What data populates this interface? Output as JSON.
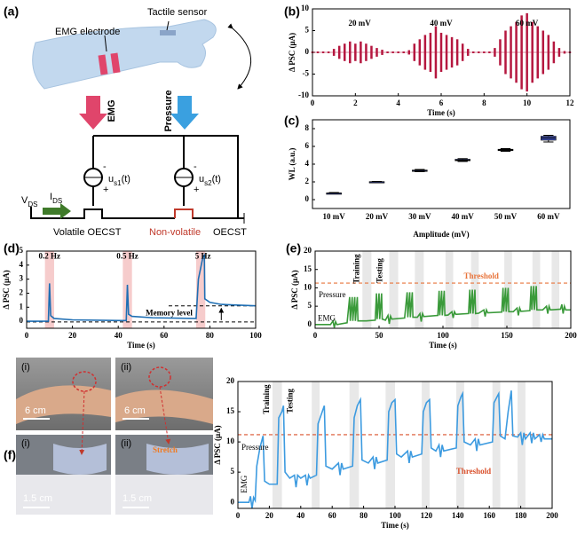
{
  "figure": {
    "panel_labels": [
      "(a)",
      "(b)",
      "(c)",
      "(d)",
      "(e)",
      "(f)"
    ],
    "diagram": {
      "electrode": "EMG electrode",
      "sensor": "Tactile sensor",
      "emg": "EMG",
      "pressure": "Pressure",
      "source1": {
        "main": "u",
        "sub": "s1",
        "tail": "(t)"
      },
      "source2": {
        "main": "u",
        "sub": "s2",
        "tail": "(t)"
      },
      "minus": "-",
      "plus": "+",
      "vds": {
        "main": "V",
        "sub": "DS"
      },
      "ids": {
        "main": "I",
        "sub": "DS"
      },
      "volatile": "Volatile OECST",
      "nonvolatile": "Non-volatile",
      "oecst": "OECST"
    },
    "photos": {
      "labels": [
        "(i)",
        "(ii)",
        "(i)",
        "(ii)"
      ],
      "scale_top": "6 cm",
      "scale_bottom": "1.5 cm",
      "stretch": "Stretch"
    }
  },
  "chart_data": [
    {
      "type": "signal",
      "xlabel": "Time (s)",
      "ylabel": "Δ PSC (μA)",
      "color": "#b5173f",
      "xlim": [
        0,
        12
      ],
      "xticks": [
        0,
        2,
        4,
        6,
        8,
        10,
        12
      ],
      "ylim": [
        -10,
        10
      ],
      "yticks": [
        -10,
        -5,
        0,
        5,
        10
      ],
      "annotations": [
        "20 mV",
        "40 mV",
        "60 mV"
      ],
      "x": [
        0,
        0.25,
        0.5,
        0.75,
        1,
        1.25,
        1.5,
        1.75,
        2,
        2.25,
        2.5,
        2.75,
        3,
        3.25,
        3.5,
        3.75,
        4,
        4.25,
        4.5,
        4.75,
        5,
        5.25,
        5.5,
        5.75,
        6,
        6.25,
        6.5,
        6.75,
        7,
        7.25,
        7.5,
        7.75,
        8,
        8.25,
        8.5,
        8.75,
        9,
        9.25,
        9.5,
        9.75,
        10,
        10.25,
        10.5,
        10.75,
        11,
        11.25,
        11.5,
        11.75,
        12
      ],
      "values": [
        0.2,
        0.2,
        0.2,
        0.2,
        0.8,
        1.5,
        2,
        2.5,
        2,
        2.5,
        2,
        1.5,
        1,
        0.6,
        0.2,
        0.2,
        0.2,
        0.2,
        0.5,
        2,
        3,
        4,
        4.5,
        6,
        4.5,
        4,
        3.5,
        3,
        2,
        0.8,
        0.2,
        0.2,
        0.2,
        0.2,
        1,
        3,
        5,
        6,
        7,
        8.5,
        9,
        7,
        6,
        5,
        4,
        2.5,
        1,
        0.3,
        0.2
      ]
    },
    {
      "type": "box",
      "xlabel": "Amplitude (mV)",
      "ylabel": "WL (a.u.)",
      "color": "#3f51b5",
      "ylim": [
        -1,
        9
      ],
      "yticks": [
        0,
        2,
        4,
        6,
        8
      ],
      "categories": [
        "10 mV",
        "20 mV",
        "30 mV",
        "40 mV",
        "50 mV",
        "60 mV"
      ],
      "min": [
        0.65,
        1.95,
        3.15,
        4.3,
        5.45,
        6.5
      ],
      "q1": [
        0.7,
        1.98,
        3.2,
        4.38,
        5.52,
        6.7
      ],
      "median": [
        0.72,
        2.0,
        3.27,
        4.45,
        5.6,
        6.95
      ],
      "q3": [
        0.75,
        2.03,
        3.33,
        4.55,
        5.68,
        7.15
      ],
      "max": [
        0.8,
        2.05,
        3.4,
        4.62,
        5.75,
        7.25
      ]
    },
    {
      "type": "line",
      "xlabel": "Time (s)",
      "ylabel": "Δ PSC (μA)",
      "color": "#1f6fb4",
      "highlight_color": "#f6cccc",
      "xlim": [
        0,
        100
      ],
      "xticks": [
        0,
        20,
        40,
        60,
        80,
        100
      ],
      "ylim": [
        -0.5,
        5
      ],
      "yticks": [
        0,
        1,
        2,
        3,
        4,
        5
      ],
      "annotations": [
        "0.2 Hz",
        "0.5 Hz",
        "5 Hz",
        "Memory level"
      ],
      "highlights": [
        [
          8,
          12
        ],
        [
          42,
          46
        ],
        [
          74,
          78
        ]
      ],
      "reference_lines": [
        -0.05,
        1.1
      ],
      "x": [
        0,
        9.5,
        10,
        10.5,
        12,
        20,
        42,
        43.5,
        44,
        44.5,
        46,
        55,
        74,
        75,
        76,
        77,
        77.6,
        77.8,
        80,
        85,
        100
      ],
      "values": [
        0,
        0,
        2.7,
        0.4,
        0.2,
        0.1,
        0.05,
        0.05,
        2.6,
        0.5,
        0.35,
        0.25,
        0.2,
        3,
        3.8,
        4.6,
        4.7,
        1.6,
        1.35,
        1.2,
        1.1
      ]
    },
    {
      "type": "line",
      "xlabel": "Time (s)",
      "ylabel": "Δ PSC (μA)",
      "color": "#3a9a3a",
      "highlight_color": "#e8e8e8",
      "threshold_color": "#e8743b",
      "xlim": [
        0,
        200
      ],
      "xticks": [
        0,
        50,
        100,
        150,
        200
      ],
      "ylim": [
        -1,
        20
      ],
      "yticks": [
        0,
        5,
        10,
        15,
        20
      ],
      "annotations": [
        "Threshold",
        "Training",
        "Testing",
        "Pressure",
        "EMG"
      ],
      "threshold": 11.3,
      "highlights": [
        [
          37,
          44
        ],
        [
          58,
          65
        ],
        [
          78,
          85
        ],
        [
          102,
          108
        ],
        [
          122,
          128
        ],
        [
          148,
          154
        ],
        [
          170,
          176
        ],
        [
          185,
          191
        ]
      ],
      "x": [
        0,
        12,
        14,
        15,
        16,
        17,
        25,
        27,
        27.5,
        29,
        29.5,
        31,
        31.5,
        33,
        33.5,
        40,
        47,
        48,
        48.5,
        50,
        50.5,
        52,
        52.5,
        55,
        57,
        58,
        59,
        60,
        70,
        72,
        72.5,
        74,
        74.5,
        76,
        76.5,
        80,
        82,
        83,
        84,
        85,
        96,
        97,
        97.5,
        99,
        99.5,
        101,
        101.5,
        104,
        107,
        108,
        109,
        110,
        120,
        121,
        121.5,
        123,
        123.5,
        125,
        125.5,
        128,
        132,
        133,
        134,
        135,
        146,
        147,
        147.5,
        149,
        149.5,
        151,
        151.5,
        155,
        158,
        159,
        160,
        161,
        168,
        169,
        169.5,
        171,
        171.5,
        173,
        173.5,
        178,
        181,
        182,
        183,
        184,
        192,
        193,
        194,
        195,
        196,
        200
      ],
      "values": [
        0,
        0,
        1,
        -0.8,
        0.8,
        0,
        0.5,
        7.5,
        1,
        7.5,
        1,
        7.5,
        1,
        7.5,
        1,
        1,
        1.2,
        8.5,
        1.5,
        8.5,
        1.5,
        8.5,
        1.5,
        1.2,
        2.5,
        0.2,
        2.3,
        1.5,
        1.8,
        8.8,
        2,
        8.8,
        2,
        8.8,
        2,
        2,
        3,
        0.8,
        3,
        2.2,
        2.5,
        9.2,
        2.5,
        9.2,
        2.5,
        9.2,
        2.5,
        2.6,
        3.5,
        1.8,
        3.5,
        2.8,
        3,
        9.5,
        3,
        9.5,
        3,
        9.5,
        3,
        3.1,
        4,
        2.2,
        4,
        3.2,
        3.4,
        10,
        3.5,
        10,
        3.5,
        10,
        3.5,
        3.5,
        4.5,
        2.5,
        4.5,
        3.6,
        3.8,
        10.5,
        4,
        10.5,
        4,
        10.5,
        4,
        4,
        5,
        3,
        5,
        4,
        4.2,
        5.5,
        3,
        5,
        4,
        4
      ]
    },
    {
      "type": "line",
      "xlabel": "Time (s)",
      "ylabel": "Δ PSC (μA)",
      "color": "#3d9be0",
      "highlight_color": "#e8e8e8",
      "threshold_color": "#d9502b",
      "xlim": [
        0,
        200
      ],
      "xticks": [
        0,
        20,
        40,
        60,
        80,
        100,
        120,
        140,
        160,
        180,
        200
      ],
      "ylim": [
        -1,
        20
      ],
      "yticks": [
        0,
        5,
        10,
        15,
        20
      ],
      "annotations": [
        "Threshold",
        "Training",
        "Testing",
        "Pressure",
        "EMG"
      ],
      "threshold": 11.2,
      "highlights": [
        [
          22,
          28
        ],
        [
          47,
          52
        ],
        [
          71,
          77
        ],
        [
          94,
          100
        ],
        [
          117,
          122
        ],
        [
          139,
          144
        ],
        [
          162,
          167
        ],
        [
          178,
          183
        ]
      ],
      "x": [
        0,
        7,
        8,
        9,
        10,
        11,
        12,
        14,
        16,
        17,
        20,
        25,
        26,
        28,
        29,
        30,
        33,
        36,
        37,
        38,
        40,
        43,
        44,
        45,
        46,
        50,
        51,
        53,
        55,
        56,
        60,
        64,
        65,
        66,
        67,
        73,
        74,
        76,
        78,
        79,
        83,
        86,
        87,
        88,
        89,
        95,
        96,
        98,
        100,
        101,
        104,
        108,
        109,
        110,
        111,
        117,
        118,
        120,
        122,
        123,
        126,
        128,
        129,
        130,
        131,
        139,
        140,
        142,
        143,
        144,
        148,
        151,
        152,
        153,
        154,
        162,
        163,
        165,
        166,
        167,
        170,
        172,
        174,
        175,
        178,
        180,
        181,
        182,
        183,
        186,
        187,
        188,
        189,
        192,
        193,
        194,
        195,
        200
      ],
      "values": [
        0,
        0,
        1,
        -1,
        0.8,
        0.3,
        6,
        9,
        11,
        3.5,
        3,
        3,
        14,
        15,
        16,
        5,
        4,
        4.5,
        2.5,
        4.5,
        4,
        4.5,
        2.8,
        4.5,
        4,
        4.5,
        13,
        14.5,
        16,
        6,
        5.5,
        6.5,
        4.5,
        6.5,
        5.5,
        6,
        14,
        16,
        17,
        7,
        6.5,
        7.5,
        5.5,
        7.5,
        6.5,
        7,
        15,
        16.5,
        17,
        8,
        7.5,
        8.5,
        6.5,
        8.5,
        7.5,
        8,
        15,
        16.5,
        17,
        9,
        8.5,
        9.5,
        7.5,
        9.5,
        8.5,
        9,
        16,
        17.5,
        18,
        10,
        9.5,
        10.5,
        8.5,
        10.5,
        9.5,
        10,
        16.5,
        17.5,
        18,
        11,
        10.5,
        15,
        18.5,
        11,
        10.8,
        11.5,
        9.5,
        11.5,
        10.5,
        11.5,
        9.8,
        11.5,
        10.5,
        11.2,
        10,
        11.2,
        10.5,
        10.5
      ]
    }
  ]
}
